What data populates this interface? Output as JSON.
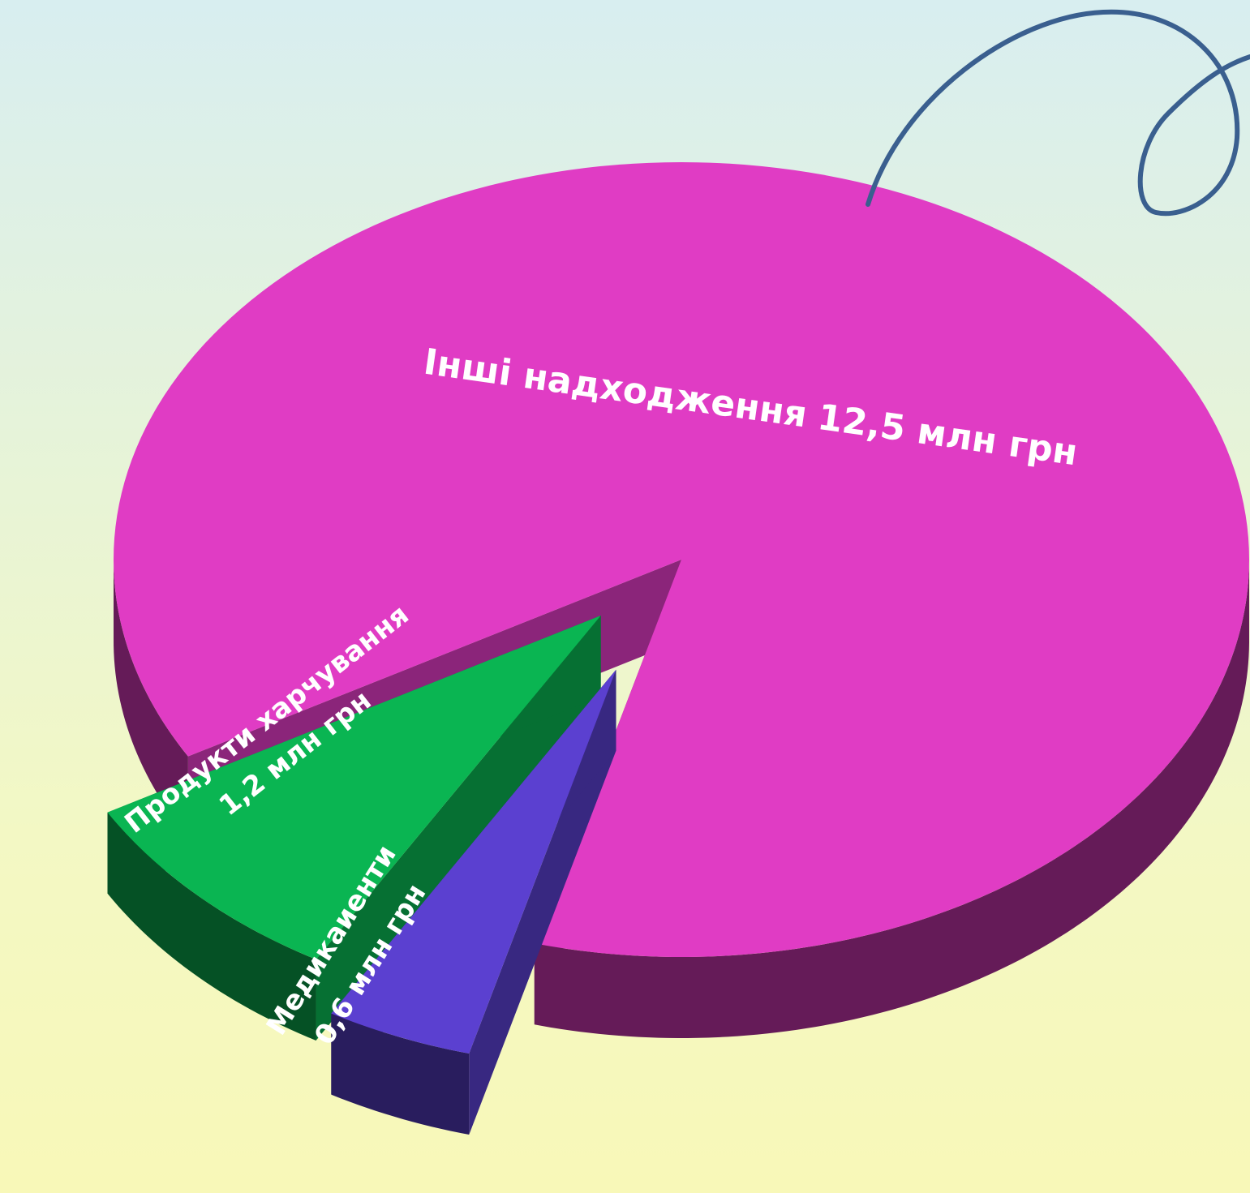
{
  "chart_data": {
    "type": "pie",
    "categories": [
      "Інші надходження",
      "Продукти харчування",
      "Медикаиенти"
    ],
    "values": [
      12.5,
      1.2,
      0.6
    ],
    "value_labels": [
      "12,5 млн грн",
      "1,2 млн грн",
      "0,6 млн грн"
    ],
    "colors": [
      "#e03cc4",
      "#0ab552",
      "#5b40d0"
    ]
  }
}
